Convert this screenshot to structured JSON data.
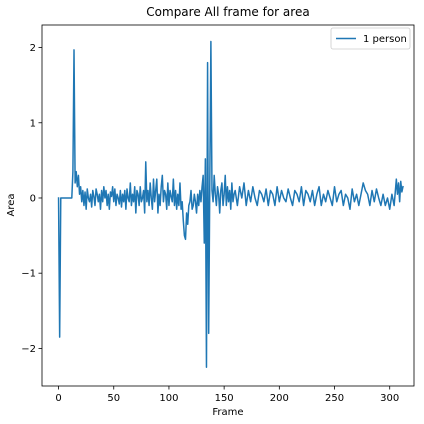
{
  "chart_data": {
    "type": "line",
    "title": "Compare All frame for area",
    "xlabel": "Frame",
    "ylabel": "Area",
    "xlim": [
      -15,
      322
    ],
    "ylim": [
      -2.5,
      2.3
    ],
    "xticks": [
      0,
      50,
      100,
      150,
      200,
      250,
      300
    ],
    "yticks": [
      -2,
      -1,
      0,
      1,
      2
    ],
    "xtick_labels": [
      "0",
      "50",
      "100",
      "150",
      "200",
      "250",
      "300"
    ],
    "ytick_labels": [
      "−2",
      "−1",
      "0",
      "1",
      "2"
    ],
    "grid": false,
    "legend_placement": "top-right",
    "series": [
      {
        "name": "1 person",
        "color": "#1f77b4",
        "points": [
          [
            0,
            0.0
          ],
          [
            1,
            -1.85
          ],
          [
            2,
            0.0
          ],
          [
            3,
            0.0
          ],
          [
            5,
            0.0
          ],
          [
            7,
            0.0
          ],
          [
            9,
            0.0
          ],
          [
            11,
            0.0
          ],
          [
            12,
            0.0
          ],
          [
            13,
            0.35
          ],
          [
            14,
            1.97
          ],
          [
            15,
            0.2
          ],
          [
            16,
            0.35
          ],
          [
            17,
            0.15
          ],
          [
            18,
            0.3
          ],
          [
            19,
            0.05
          ],
          [
            20,
            0.15
          ],
          [
            21,
            -0.05
          ],
          [
            22,
            0.1
          ],
          [
            23,
            -0.1
          ],
          [
            24,
            0.08
          ],
          [
            25,
            -0.15
          ],
          [
            26,
            0.12
          ],
          [
            27,
            0.0
          ],
          [
            28,
            -0.05
          ],
          [
            29,
            0.05
          ],
          [
            30,
            -0.12
          ],
          [
            31,
            0.1
          ],
          [
            32,
            0.02
          ],
          [
            33,
            -0.1
          ],
          [
            34,
            0.12
          ],
          [
            35,
            0.05
          ],
          [
            36,
            -0.05
          ],
          [
            37,
            0.05
          ],
          [
            38,
            -0.15
          ],
          [
            39,
            0.1
          ],
          [
            40,
            -0.05
          ],
          [
            41,
            0.15
          ],
          [
            42,
            0.0
          ],
          [
            43,
            0.1
          ],
          [
            44,
            -0.1
          ],
          [
            45,
            0.05
          ],
          [
            46,
            -0.15
          ],
          [
            47,
            0.08
          ],
          [
            48,
            0.02
          ],
          [
            49,
            0.15
          ],
          [
            50,
            -0.05
          ],
          [
            51,
            0.12
          ],
          [
            52,
            -0.1
          ],
          [
            53,
            0.05
          ],
          [
            54,
            0.0
          ],
          [
            55,
            -0.08
          ],
          [
            56,
            0.1
          ],
          [
            57,
            -0.12
          ],
          [
            58,
            0.05
          ],
          [
            59,
            -0.05
          ],
          [
            60,
            0.1
          ],
          [
            61,
            -0.15
          ],
          [
            62,
            0.12
          ],
          [
            63,
            0.0
          ],
          [
            64,
            -0.05
          ],
          [
            65,
            0.2
          ],
          [
            66,
            -0.1
          ],
          [
            67,
            0.05
          ],
          [
            68,
            -0.05
          ],
          [
            69,
            0.15
          ],
          [
            70,
            -0.2
          ],
          [
            71,
            0.1
          ],
          [
            72,
            0.05
          ],
          [
            73,
            -0.1
          ],
          [
            74,
            0.15
          ],
          [
            75,
            -0.05
          ],
          [
            76,
            0.0
          ],
          [
            77,
            0.1
          ],
          [
            78,
            -0.2
          ],
          [
            79,
            0.48
          ],
          [
            80,
            -0.05
          ],
          [
            81,
            0.1
          ],
          [
            82,
            -0.1
          ],
          [
            83,
            0.2
          ],
          [
            84,
            0.0
          ],
          [
            85,
            -0.15
          ],
          [
            86,
            0.25
          ],
          [
            87,
            -0.05
          ],
          [
            88,
            0.1
          ],
          [
            89,
            0.25
          ],
          [
            90,
            -0.2
          ],
          [
            91,
            0.05
          ],
          [
            92,
            -0.1
          ],
          [
            93,
            0.15
          ],
          [
            94,
            0.3
          ],
          [
            95,
            -0.05
          ],
          [
            96,
            0.1
          ],
          [
            97,
            0.05
          ],
          [
            98,
            -0.15
          ],
          [
            99,
            0.2
          ],
          [
            100,
            -0.1
          ],
          [
            101,
            0.1
          ],
          [
            102,
            0.02
          ],
          [
            103,
            -0.05
          ],
          [
            104,
            0.25
          ],
          [
            105,
            -0.1
          ],
          [
            106,
            0.1
          ],
          [
            107,
            -0.15
          ],
          [
            108,
            0.05
          ],
          [
            109,
            -0.1
          ],
          [
            110,
            0.2
          ],
          [
            111,
            -0.15
          ],
          [
            112,
            -0.05
          ],
          [
            113,
            -0.3
          ],
          [
            114,
            -0.5
          ],
          [
            115,
            -0.55
          ],
          [
            116,
            -0.2
          ],
          [
            117,
            -0.35
          ],
          [
            118,
            -0.1
          ],
          [
            119,
            -0.05
          ],
          [
            120,
            0.1
          ],
          [
            121,
            -0.15
          ],
          [
            122,
            -0.1
          ],
          [
            123,
            0.05
          ],
          [
            124,
            -0.05
          ],
          [
            125,
            -0.2
          ],
          [
            126,
            0.05
          ],
          [
            127,
            -0.1
          ],
          [
            128,
            0.1
          ],
          [
            129,
            -0.05
          ],
          [
            130,
            0.15
          ],
          [
            131,
            0.3
          ],
          [
            132,
            -0.6
          ],
          [
            133,
            0.52
          ],
          [
            134,
            -2.25
          ],
          [
            135,
            1.8
          ],
          [
            136,
            -1.8
          ],
          [
            137,
            0.2
          ],
          [
            138,
            2.08
          ],
          [
            139,
            0.1
          ],
          [
            140,
            -0.05
          ],
          [
            141,
            0.3
          ],
          [
            142,
            0.05
          ],
          [
            143,
            -0.1
          ],
          [
            144,
            0.15
          ],
          [
            145,
            0.05
          ],
          [
            146,
            -0.2
          ],
          [
            147,
            0.1
          ],
          [
            148,
            0.2
          ],
          [
            149,
            -0.1
          ],
          [
            150,
            0.05
          ],
          [
            151,
            0.3
          ],
          [
            152,
            -0.1
          ],
          [
            153,
            0.15
          ],
          [
            154,
            -0.05
          ],
          [
            155,
            0.1
          ],
          [
            156,
            -0.15
          ],
          [
            157,
            0.2
          ],
          [
            158,
            -0.05
          ],
          [
            159,
            0.05
          ],
          [
            160,
            0.1
          ],
          [
            162,
            -0.1
          ],
          [
            164,
            0.15
          ],
          [
            166,
            0.0
          ],
          [
            168,
            0.2
          ],
          [
            170,
            -0.1
          ],
          [
            172,
            0.1
          ],
          [
            174,
            -0.05
          ],
          [
            176,
            0.15
          ],
          [
            178,
            0.0
          ],
          [
            180,
            -0.1
          ],
          [
            182,
            0.1
          ],
          [
            184,
            0.05
          ],
          [
            186,
            -0.05
          ],
          [
            188,
            0.12
          ],
          [
            190,
            -0.1
          ],
          [
            192,
            0.1
          ],
          [
            194,
            0.05
          ],
          [
            196,
            -0.1
          ],
          [
            198,
            0.15
          ],
          [
            200,
            -0.05
          ],
          [
            202,
            0.1
          ],
          [
            204,
            0.0
          ],
          [
            206,
            -0.05
          ],
          [
            208,
            0.12
          ],
          [
            210,
            0.0
          ],
          [
            212,
            -0.1
          ],
          [
            214,
            0.1
          ],
          [
            216,
            0.05
          ],
          [
            218,
            -0.05
          ],
          [
            220,
            0.15
          ],
          [
            222,
            -0.1
          ],
          [
            224,
            0.1
          ],
          [
            226,
            0.05
          ],
          [
            228,
            -0.05
          ],
          [
            230,
            0.1
          ],
          [
            232,
            -0.1
          ],
          [
            234,
            0.05
          ],
          [
            236,
            0.15
          ],
          [
            238,
            -0.1
          ],
          [
            240,
            0.05
          ],
          [
            242,
            -0.05
          ],
          [
            244,
            0.1
          ],
          [
            246,
            0.0
          ],
          [
            248,
            -0.1
          ],
          [
            250,
            0.15
          ],
          [
            252,
            -0.05
          ],
          [
            254,
            0.05
          ],
          [
            256,
            0.1
          ],
          [
            258,
            -0.1
          ],
          [
            260,
            0.05
          ],
          [
            262,
            0.0
          ],
          [
            264,
            -0.15
          ],
          [
            266,
            0.12
          ],
          [
            268,
            -0.05
          ],
          [
            270,
            0.05
          ],
          [
            272,
            -0.1
          ],
          [
            274,
            0.05
          ],
          [
            276,
            0.2
          ],
          [
            278,
            0.1
          ],
          [
            280,
            0.05
          ],
          [
            282,
            -0.1
          ],
          [
            284,
            0.1
          ],
          [
            286,
            -0.05
          ],
          [
            288,
            0.12
          ],
          [
            290,
            0.0
          ],
          [
            292,
            -0.1
          ],
          [
            294,
            0.05
          ],
          [
            296,
            -0.1
          ],
          [
            298,
            0.0
          ],
          [
            300,
            -0.15
          ],
          [
            302,
            0.05
          ],
          [
            304,
            -0.1
          ],
          [
            306,
            0.25
          ],
          [
            307,
            0.05
          ],
          [
            308,
            0.2
          ],
          [
            309,
            -0.05
          ],
          [
            310,
            0.22
          ],
          [
            311,
            0.08
          ],
          [
            312,
            0.15
          ]
        ]
      }
    ]
  }
}
